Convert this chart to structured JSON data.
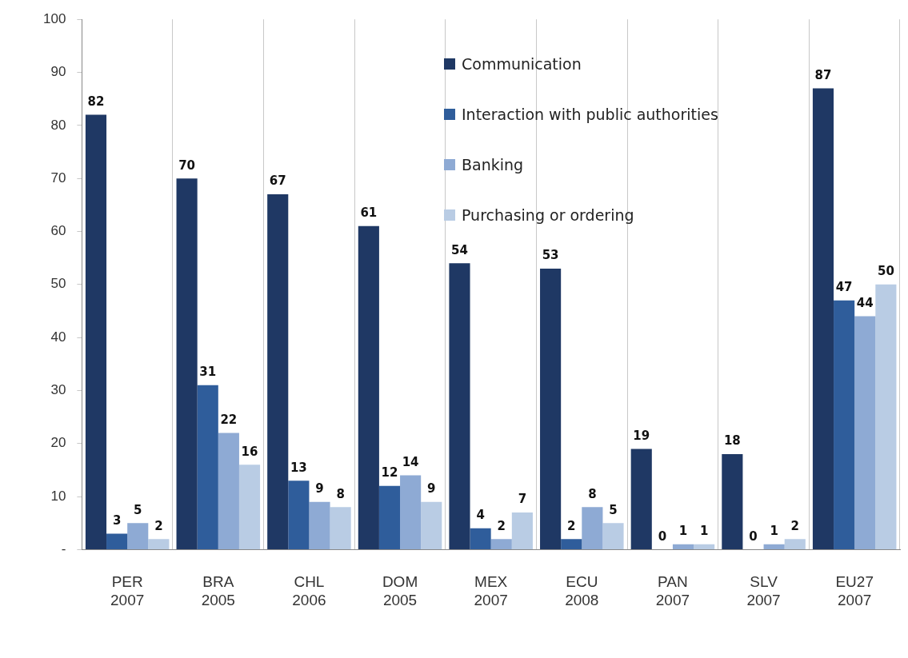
{
  "chart_data": {
    "type": "bar",
    "categories": [
      "PER 2007",
      "BRA 2005",
      "CHL 2006",
      "DOM 2005",
      "MEX 2007",
      "ECU 2008",
      "PAN 2007",
      "SLV 2007",
      "EU27 2007"
    ],
    "series": [
      {
        "name": "Communication",
        "color": "#1f3864",
        "values": [
          82,
          70,
          67,
          61,
          54,
          53,
          19,
          18,
          87
        ]
      },
      {
        "name": "Interaction with public authorities",
        "color": "#2f5d9b",
        "values": [
          3,
          31,
          13,
          12,
          4,
          2,
          0,
          0,
          47
        ]
      },
      {
        "name": "Banking",
        "color": "#8eaad4",
        "values": [
          5,
          22,
          9,
          14,
          2,
          8,
          1,
          1,
          44
        ]
      },
      {
        "name": "Purchasing or ordering",
        "color": "#b9cce4",
        "values": [
          2,
          16,
          8,
          9,
          7,
          5,
          1,
          2,
          50
        ]
      }
    ],
    "ylim": [
      0,
      100
    ],
    "yticks": [
      {
        "value": 0,
        "label": "-"
      },
      10,
      20,
      30,
      40,
      50,
      60,
      70,
      80,
      90,
      100
    ],
    "grid": "x",
    "legend": "top right",
    "data_labels": true
  }
}
